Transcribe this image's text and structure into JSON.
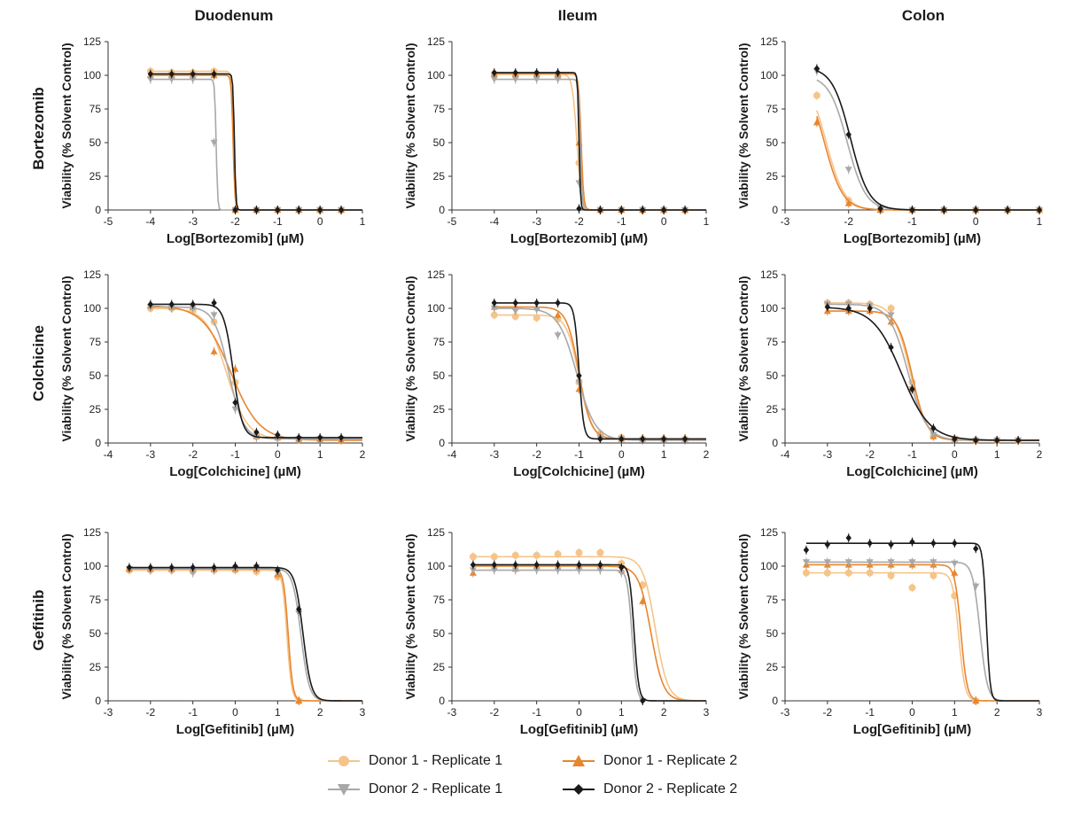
{
  "column_titles": [
    "Duodenum",
    "Ileum",
    "Colon"
  ],
  "row_titles": [
    "Bortezomib",
    "Colchicine",
    "Gefitinib"
  ],
  "legend": [
    {
      "name": "Donor 1 - Replicate 1",
      "color": "#f5c48a",
      "marker": "circle"
    },
    {
      "name": "Donor 1 - Replicate 2",
      "color": "#e8862e",
      "marker": "triangle-up"
    },
    {
      "name": "Donor 2 - Replicate 1",
      "color": "#a8a8a8",
      "marker": "triangle-down"
    },
    {
      "name": "Donor 2 - Replicate 2",
      "color": "#1a1a1a",
      "marker": "diamond"
    }
  ],
  "chart_data": [
    {
      "type": "line",
      "row": 0,
      "col": 0,
      "xlabel": "Log[Bortezomib] (µM)",
      "ylabel": "Viability (% Solvent Control)",
      "xlim": [
        -5,
        1
      ],
      "xticks": [
        -5,
        -4,
        -3,
        -2,
        -1,
        0,
        1
      ],
      "ylim": [
        0,
        125
      ],
      "yticks": [
        0,
        25,
        50,
        75,
        100,
        125
      ],
      "x": [
        -4,
        -3.5,
        -3,
        -2.5,
        -2,
        -1.5,
        -1,
        -0.5,
        0,
        0.5
      ],
      "series": [
        {
          "name": "Donor 1 - Replicate 1",
          "top": 103,
          "bottom": 0,
          "ic50": -2.05,
          "hill": 20,
          "values": [
            103,
            102,
            102,
            103,
            0,
            0,
            0,
            0,
            0,
            0
          ]
        },
        {
          "name": "Donor 1 - Replicate 2",
          "top": 100,
          "bottom": 0,
          "ic50": -2.05,
          "hill": 20,
          "values": [
            100,
            100,
            100,
            100,
            0,
            0,
            0,
            0,
            0,
            0
          ]
        },
        {
          "name": "Donor 2 - Replicate 1",
          "top": 97,
          "bottom": 0,
          "ic50": -2.45,
          "hill": 25,
          "values": [
            97,
            97,
            97,
            50,
            0,
            0,
            0,
            0,
            0,
            0
          ]
        },
        {
          "name": "Donor 2 - Replicate 2",
          "top": 101,
          "bottom": 0,
          "ic50": -2.02,
          "hill": 25,
          "values": [
            101,
            101,
            101,
            101,
            0,
            0,
            0,
            0,
            0,
            0
          ]
        }
      ]
    },
    {
      "type": "line",
      "row": 0,
      "col": 1,
      "xlabel": "Log[Bortezomib] (µM)",
      "ylabel": "Viability (% Solvent Control)",
      "xlim": [
        -5,
        1
      ],
      "xticks": [
        -5,
        -4,
        -3,
        -2,
        -1,
        0,
        1
      ],
      "ylim": [
        0,
        125
      ],
      "yticks": [
        0,
        25,
        50,
        75,
        100,
        125
      ],
      "x": [
        -4,
        -3.5,
        -3,
        -2.5,
        -2,
        -1.5,
        -1,
        -0.5,
        0,
        0.5
      ],
      "series": [
        {
          "name": "Donor 1 - Replicate 1",
          "top": 101,
          "bottom": 0,
          "ic50": -2.05,
          "hill": 8,
          "values": [
            101,
            100,
            101,
            99,
            35,
            0,
            0,
            0,
            0,
            0
          ]
        },
        {
          "name": "Donor 1 - Replicate 2",
          "top": 101,
          "bottom": 0,
          "ic50": -1.95,
          "hill": 15,
          "values": [
            101,
            101,
            101,
            101,
            50,
            0,
            0,
            0,
            0,
            0
          ]
        },
        {
          "name": "Donor 2 - Replicate 1",
          "top": 97,
          "bottom": 0,
          "ic50": -1.97,
          "hill": 20,
          "values": [
            97,
            97,
            97,
            97,
            20,
            0,
            0,
            0,
            0,
            0
          ]
        },
        {
          "name": "Donor 2 - Replicate 2",
          "top": 102,
          "bottom": 0,
          "ic50": -2.0,
          "hill": 25,
          "values": [
            102,
            102,
            102,
            102,
            1,
            0,
            0,
            0,
            0,
            0
          ]
        }
      ]
    },
    {
      "type": "line",
      "row": 0,
      "col": 2,
      "xlabel": "Log[Bortezomib] (µM)",
      "ylabel": "Viability (% Solvent Control)",
      "xlim": [
        -3,
        1
      ],
      "xticks": [
        -3,
        -2,
        -1,
        0,
        1
      ],
      "ylim": [
        0,
        125
      ],
      "yticks": [
        0,
        25,
        50,
        75,
        100,
        125
      ],
      "x": [
        -2.5,
        -2,
        -1.5,
        -1,
        -0.5,
        0,
        0.5,
        1
      ],
      "series": [
        {
          "name": "Donor 1 - Replicate 1",
          "top": 100,
          "bottom": 0,
          "ic50": -2.35,
          "hill": 3,
          "values": [
            85,
            7,
            0,
            0,
            0,
            0,
            0,
            0
          ]
        },
        {
          "name": "Donor 1 - Replicate 2",
          "top": 100,
          "bottom": 0,
          "ic50": -2.38,
          "hill": 3,
          "values": [
            65,
            5,
            0,
            0,
            0,
            0,
            0,
            0
          ]
        },
        {
          "name": "Donor 2 - Replicate 1",
          "top": 100,
          "bottom": 0,
          "ic50": -2.02,
          "hill": 3,
          "values": [
            103,
            30,
            1,
            0,
            0,
            0,
            0,
            0
          ]
        },
        {
          "name": "Donor 2 - Replicate 2",
          "top": 106,
          "bottom": 0,
          "ic50": -1.97,
          "hill": 3,
          "values": [
            105,
            56,
            1,
            0,
            0,
            0,
            0,
            0
          ]
        }
      ]
    },
    {
      "type": "line",
      "row": 1,
      "col": 0,
      "xlabel": "Log[Colchicine] (µM)",
      "ylabel": "Viability (% Solvent Control)",
      "xlim": [
        -4,
        2
      ],
      "xticks": [
        -4,
        -3,
        -2,
        -1,
        0,
        1,
        2
      ],
      "ylim": [
        0,
        125
      ],
      "yticks": [
        0,
        25,
        50,
        75,
        100,
        125
      ],
      "x": [
        -3,
        -2.5,
        -2,
        -1.5,
        -1,
        -0.5,
        0,
        0.5,
        1,
        1.5
      ],
      "series": [
        {
          "name": "Donor 1 - Replicate 1",
          "top": 100,
          "bottom": 3,
          "ic50": -1.2,
          "hill": 1.8,
          "values": [
            100,
            100,
            98,
            90,
            45,
            5,
            4,
            3,
            3,
            3
          ]
        },
        {
          "name": "Donor 1 - Replicate 2",
          "top": 102,
          "bottom": 2,
          "ic50": -1.1,
          "hill": 1.3,
          "values": [
            102,
            101,
            101,
            68,
            55,
            5,
            4,
            3,
            3,
            2
          ]
        },
        {
          "name": "Donor 2 - Replicate 1",
          "top": 101,
          "bottom": 3,
          "ic50": -1.15,
          "hill": 2.5,
          "values": [
            101,
            100,
            100,
            95,
            25,
            4,
            3,
            3,
            3,
            3
          ]
        },
        {
          "name": "Donor 2 - Replicate 2",
          "top": 103,
          "bottom": 4,
          "ic50": -1.05,
          "hill": 4,
          "values": [
            103,
            103,
            103,
            104,
            30,
            8,
            6,
            4,
            4,
            4
          ]
        }
      ]
    },
    {
      "type": "line",
      "row": 1,
      "col": 1,
      "xlabel": "Log[Colchicine] (µM)",
      "ylabel": "Viability (% Solvent Control)",
      "xlim": [
        -4,
        2
      ],
      "xticks": [
        -4,
        -3,
        -2,
        -1,
        0,
        1,
        2
      ],
      "ylim": [
        0,
        125
      ],
      "yticks": [
        0,
        25,
        50,
        75,
        100,
        125
      ],
      "x": [
        -3,
        -2.5,
        -2,
        -1.5,
        -1,
        -0.5,
        0,
        0.5,
        1,
        1.5
      ],
      "series": [
        {
          "name": "Donor 1 - Replicate 1",
          "top": 95,
          "bottom": 3,
          "ic50": -1.0,
          "hill": 3,
          "values": [
            95,
            94,
            93,
            92,
            45,
            7,
            4,
            3,
            3,
            3
          ]
        },
        {
          "name": "Donor 1 - Replicate 2",
          "top": 101,
          "bottom": 3,
          "ic50": -1.0,
          "hill": 3,
          "values": [
            101,
            101,
            101,
            95,
            40,
            5,
            3,
            3,
            3,
            3
          ]
        },
        {
          "name": "Donor 2 - Replicate 1",
          "top": 100,
          "bottom": 2,
          "ic50": -1.05,
          "hill": 2,
          "values": [
            100,
            98,
            99,
            80,
            45,
            4,
            3,
            2,
            2,
            2
          ]
        },
        {
          "name": "Donor 2 - Replicate 2",
          "top": 104,
          "bottom": 3,
          "ic50": -1.0,
          "hill": 8,
          "values": [
            104,
            104,
            104,
            104,
            50,
            3,
            3,
            3,
            3,
            3
          ]
        }
      ]
    },
    {
      "type": "line",
      "row": 1,
      "col": 2,
      "xlabel": "Log[Colchicine] (µM)",
      "ylabel": "Viability (% Solvent Control)",
      "xlim": [
        -4,
        2
      ],
      "xticks": [
        -4,
        -3,
        -2,
        -1,
        0,
        1,
        2
      ],
      "ylim": [
        0,
        125
      ],
      "yticks": [
        0,
        25,
        50,
        75,
        100,
        125
      ],
      "x": [
        -3,
        -2.5,
        -2,
        -1.5,
        -1,
        -0.5,
        0,
        0.5,
        1,
        1.5
      ],
      "series": [
        {
          "name": "Donor 1 - Replicate 1",
          "top": 104,
          "bottom": 2,
          "ic50": -1.05,
          "hill": 2.2,
          "values": [
            104,
            104,
            103,
            100,
            45,
            5,
            3,
            2,
            2,
            2
          ]
        },
        {
          "name": "Donor 1 - Replicate 2",
          "top": 98,
          "bottom": 2,
          "ic50": -1.0,
          "hill": 2.5,
          "values": [
            98,
            98,
            98,
            90,
            40,
            5,
            3,
            2,
            2,
            2
          ]
        },
        {
          "name": "Donor 2 - Replicate 1",
          "top": 103,
          "bottom": 2,
          "ic50": -1.1,
          "hill": 2,
          "values": [
            103,
            103,
            102,
            95,
            40,
            6,
            3,
            2,
            2,
            2
          ]
        },
        {
          "name": "Donor 2 - Replicate 2",
          "top": 101,
          "bottom": 2,
          "ic50": -1.25,
          "hill": 1.3,
          "values": [
            101,
            100,
            100,
            71,
            40,
            11,
            3,
            2,
            2,
            2
          ]
        }
      ]
    },
    {
      "type": "line",
      "row": 2,
      "col": 0,
      "xlabel": "Log[Gefitinib] (µM)",
      "ylabel": "Viability (% Solvent Control)",
      "xlim": [
        -3,
        3
      ],
      "xticks": [
        -3,
        -2,
        -1,
        0,
        1,
        2,
        3
      ],
      "ylim": [
        0,
        125
      ],
      "yticks": [
        0,
        25,
        50,
        75,
        100,
        125
      ],
      "x": [
        -2.5,
        -2,
        -1.5,
        -1,
        -0.5,
        0,
        0.5,
        1,
        1.5
      ],
      "series": [
        {
          "name": "Donor 1 - Replicate 1",
          "top": 97,
          "bottom": 0,
          "ic50": 1.22,
          "hill": 8,
          "values": [
            97,
            97,
            97,
            96,
            97,
            97,
            96,
            92,
            0
          ]
        },
        {
          "name": "Donor 1 - Replicate 2",
          "top": 98,
          "bottom": 0,
          "ic50": 1.25,
          "hill": 8,
          "values": [
            98,
            98,
            98,
            98,
            98,
            98,
            98,
            94,
            0
          ]
        },
        {
          "name": "Donor 2 - Replicate 1",
          "top": 98,
          "bottom": 0,
          "ic50": 1.55,
          "hill": 4.5,
          "values": [
            98,
            97,
            97,
            95,
            97,
            98,
            99,
            95,
            65
          ]
        },
        {
          "name": "Donor 2 - Replicate 2",
          "top": 99,
          "bottom": 0,
          "ic50": 1.6,
          "hill": 4.5,
          "values": [
            99,
            99,
            99,
            99,
            99,
            100,
            100,
            97,
            68
          ]
        }
      ]
    },
    {
      "type": "line",
      "row": 2,
      "col": 1,
      "xlabel": "Log[Gefitinib] (µM)",
      "ylabel": "Viability (% Solvent Control)",
      "xlim": [
        -3,
        3
      ],
      "xticks": [
        -3,
        -2,
        -1,
        0,
        1,
        2,
        3
      ],
      "ylim": [
        0,
        125
      ],
      "yticks": [
        0,
        25,
        50,
        75,
        100,
        125
      ],
      "x": [
        -2.5,
        -2,
        -1.5,
        -1,
        -0.5,
        0,
        0.5,
        1,
        1.5
      ],
      "series": [
        {
          "name": "Donor 1 - Replicate 1",
          "top": 107,
          "bottom": 0,
          "ic50": 1.8,
          "hill": 3,
          "values": [
            107,
            107,
            108,
            108,
            109,
            110,
            110,
            102,
            86
          ]
        },
        {
          "name": "Donor 1 - Replicate 2",
          "top": 100,
          "bottom": 0,
          "ic50": 1.7,
          "hill": 3,
          "values": [
            95,
            99,
            98,
            100,
            99,
            100,
            99,
            97,
            74
          ]
        },
        {
          "name": "Donor 2 - Replicate 1",
          "top": 97,
          "bottom": 0,
          "ic50": 1.25,
          "hill": 8,
          "values": [
            97,
            97,
            97,
            97,
            97,
            97,
            97,
            95,
            0
          ]
        },
        {
          "name": "Donor 2 - Replicate 2",
          "top": 101,
          "bottom": 0,
          "ic50": 1.3,
          "hill": 8,
          "values": [
            101,
            101,
            101,
            101,
            101,
            101,
            101,
            99,
            0
          ]
        }
      ]
    },
    {
      "type": "line",
      "row": 2,
      "col": 2,
      "xlabel": "Log[Gefitinib] (µM)",
      "ylabel": "Viability (% Solvent Control)",
      "xlim": [
        -3,
        3
      ],
      "xticks": [
        -3,
        -2,
        -1,
        0,
        1,
        2,
        3
      ],
      "ylim": [
        0,
        125
      ],
      "yticks": [
        0,
        25,
        50,
        75,
        100,
        125
      ],
      "x": [
        -2.5,
        -2,
        -1.5,
        -1,
        -0.5,
        0,
        0.5,
        1,
        1.5
      ],
      "series": [
        {
          "name": "Donor 1 - Replicate 1",
          "top": 95,
          "bottom": 0,
          "ic50": 1.1,
          "hill": 6,
          "values": [
            95,
            95,
            95,
            95,
            93,
            84,
            93,
            78,
            0
          ]
        },
        {
          "name": "Donor 1 - Replicate 2",
          "top": 101,
          "bottom": 0,
          "ic50": 1.15,
          "hill": 6,
          "values": [
            101,
            101,
            101,
            101,
            101,
            101,
            101,
            95,
            0
          ]
        },
        {
          "name": "Donor 2 - Replicate 1",
          "top": 103,
          "bottom": 0,
          "ic50": 1.6,
          "hill": 5,
          "values": [
            103,
            103,
            103,
            103,
            103,
            103,
            103,
            102,
            85
          ]
        },
        {
          "name": "Donor 2 - Replicate 2",
          "top": 117,
          "bottom": 0,
          "ic50": 1.75,
          "hill": 10,
          "values": [
            112,
            116,
            121,
            117,
            116,
            118,
            117,
            117,
            113
          ]
        }
      ]
    }
  ]
}
